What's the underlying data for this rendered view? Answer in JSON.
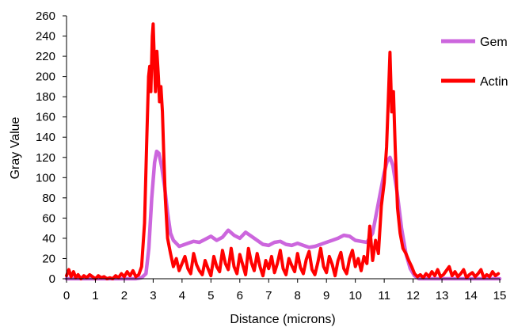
{
  "chart_data": {
    "type": "line",
    "title": "",
    "xlabel": "Distance (microns)",
    "ylabel": "Gray Value",
    "xlim": [
      0,
      15
    ],
    "ylim": [
      0,
      260
    ],
    "xticks": [
      0,
      1,
      2,
      3,
      4,
      5,
      6,
      7,
      8,
      9,
      10,
      11,
      12,
      13,
      14,
      15
    ],
    "yticks": [
      0,
      20,
      40,
      60,
      80,
      100,
      120,
      140,
      160,
      180,
      200,
      220,
      240,
      260
    ],
    "grid": false,
    "legend_position": "right",
    "series": [
      {
        "name": "Gem",
        "color": "#cc66dd",
        "points": [
          [
            0.0,
            0
          ],
          [
            0.5,
            0
          ],
          [
            1.0,
            0
          ],
          [
            1.5,
            0
          ],
          [
            2.0,
            0
          ],
          [
            2.4,
            0
          ],
          [
            2.6,
            1
          ],
          [
            2.75,
            5
          ],
          [
            2.85,
            30
          ],
          [
            2.95,
            80
          ],
          [
            3.05,
            115
          ],
          [
            3.12,
            126
          ],
          [
            3.2,
            124
          ],
          [
            3.3,
            110
          ],
          [
            3.4,
            90
          ],
          [
            3.5,
            65
          ],
          [
            3.6,
            45
          ],
          [
            3.7,
            38
          ],
          [
            3.8,
            35
          ],
          [
            3.9,
            32
          ],
          [
            4.0,
            33
          ],
          [
            4.2,
            35
          ],
          [
            4.4,
            37
          ],
          [
            4.6,
            36
          ],
          [
            4.8,
            39
          ],
          [
            5.0,
            42
          ],
          [
            5.2,
            38
          ],
          [
            5.4,
            41
          ],
          [
            5.6,
            48
          ],
          [
            5.8,
            43
          ],
          [
            6.0,
            40
          ],
          [
            6.2,
            46
          ],
          [
            6.4,
            42
          ],
          [
            6.6,
            38
          ],
          [
            6.8,
            34
          ],
          [
            7.0,
            33
          ],
          [
            7.2,
            36
          ],
          [
            7.4,
            37
          ],
          [
            7.6,
            34
          ],
          [
            7.8,
            33
          ],
          [
            8.0,
            35
          ],
          [
            8.2,
            33
          ],
          [
            8.4,
            31
          ],
          [
            8.6,
            32
          ],
          [
            8.8,
            34
          ],
          [
            9.0,
            36
          ],
          [
            9.2,
            38
          ],
          [
            9.4,
            40
          ],
          [
            9.6,
            43
          ],
          [
            9.8,
            42
          ],
          [
            10.0,
            38
          ],
          [
            10.2,
            37
          ],
          [
            10.4,
            36
          ],
          [
            10.6,
            45
          ],
          [
            10.8,
            75
          ],
          [
            11.0,
            105
          ],
          [
            11.1,
            116
          ],
          [
            11.2,
            120
          ],
          [
            11.3,
            112
          ],
          [
            11.45,
            85
          ],
          [
            11.6,
            50
          ],
          [
            11.75,
            25
          ],
          [
            11.9,
            10
          ],
          [
            12.05,
            3
          ],
          [
            12.2,
            0
          ],
          [
            12.5,
            0
          ],
          [
            13.0,
            0
          ],
          [
            14.0,
            0
          ],
          [
            15.0,
            0
          ]
        ]
      },
      {
        "name": "Actin",
        "color": "#ff0000",
        "points": [
          [
            0.0,
            3
          ],
          [
            0.08,
            9
          ],
          [
            0.16,
            2
          ],
          [
            0.24,
            7
          ],
          [
            0.32,
            1
          ],
          [
            0.4,
            4
          ],
          [
            0.5,
            0
          ],
          [
            0.6,
            3
          ],
          [
            0.7,
            1
          ],
          [
            0.8,
            4
          ],
          [
            0.9,
            2
          ],
          [
            1.0,
            0
          ],
          [
            1.1,
            3
          ],
          [
            1.2,
            1
          ],
          [
            1.3,
            2
          ],
          [
            1.4,
            0
          ],
          [
            1.5,
            1
          ],
          [
            1.6,
            0
          ],
          [
            1.7,
            3
          ],
          [
            1.8,
            1
          ],
          [
            1.9,
            5
          ],
          [
            2.0,
            2
          ],
          [
            2.1,
            7
          ],
          [
            2.2,
            3
          ],
          [
            2.3,
            8
          ],
          [
            2.4,
            2
          ],
          [
            2.5,
            4
          ],
          [
            2.6,
            12
          ],
          [
            2.7,
            55
          ],
          [
            2.78,
            140
          ],
          [
            2.84,
            200
          ],
          [
            2.88,
            210
          ],
          [
            2.92,
            185
          ],
          [
            2.97,
            240
          ],
          [
            3.0,
            252
          ],
          [
            3.04,
            215
          ],
          [
            3.08,
            185
          ],
          [
            3.13,
            225
          ],
          [
            3.18,
            200
          ],
          [
            3.22,
            175
          ],
          [
            3.27,
            190
          ],
          [
            3.32,
            165
          ],
          [
            3.37,
            120
          ],
          [
            3.42,
            80
          ],
          [
            3.5,
            40
          ],
          [
            3.6,
            25
          ],
          [
            3.7,
            12
          ],
          [
            3.8,
            20
          ],
          [
            3.9,
            8
          ],
          [
            4.0,
            15
          ],
          [
            4.1,
            22
          ],
          [
            4.2,
            10
          ],
          [
            4.3,
            5
          ],
          [
            4.4,
            25
          ],
          [
            4.5,
            14
          ],
          [
            4.6,
            8
          ],
          [
            4.7,
            4
          ],
          [
            4.8,
            18
          ],
          [
            4.9,
            10
          ],
          [
            5.0,
            3
          ],
          [
            5.1,
            22
          ],
          [
            5.2,
            12
          ],
          [
            5.3,
            7
          ],
          [
            5.4,
            28
          ],
          [
            5.5,
            15
          ],
          [
            5.6,
            9
          ],
          [
            5.7,
            30
          ],
          [
            5.8,
            12
          ],
          [
            5.9,
            5
          ],
          [
            6.0,
            24
          ],
          [
            6.1,
            14
          ],
          [
            6.2,
            4
          ],
          [
            6.3,
            30
          ],
          [
            6.4,
            16
          ],
          [
            6.5,
            8
          ],
          [
            6.6,
            25
          ],
          [
            6.7,
            12
          ],
          [
            6.8,
            3
          ],
          [
            6.9,
            18
          ],
          [
            7.0,
            10
          ],
          [
            7.1,
            22
          ],
          [
            7.2,
            6
          ],
          [
            7.3,
            15
          ],
          [
            7.4,
            28
          ],
          [
            7.5,
            10
          ],
          [
            7.6,
            4
          ],
          [
            7.7,
            20
          ],
          [
            7.8,
            13
          ],
          [
            7.9,
            7
          ],
          [
            8.0,
            25
          ],
          [
            8.1,
            11
          ],
          [
            8.2,
            5
          ],
          [
            8.3,
            19
          ],
          [
            8.4,
            27
          ],
          [
            8.5,
            9
          ],
          [
            8.6,
            4
          ],
          [
            8.7,
            16
          ],
          [
            8.8,
            30
          ],
          [
            8.9,
            12
          ],
          [
            9.0,
            6
          ],
          [
            9.1,
            22
          ],
          [
            9.2,
            14
          ],
          [
            9.3,
            3
          ],
          [
            9.4,
            18
          ],
          [
            9.5,
            26
          ],
          [
            9.6,
            10
          ],
          [
            9.7,
            5
          ],
          [
            9.8,
            20
          ],
          [
            9.9,
            28
          ],
          [
            10.0,
            12
          ],
          [
            10.1,
            20
          ],
          [
            10.2,
            8
          ],
          [
            10.3,
            22
          ],
          [
            10.4,
            15
          ],
          [
            10.5,
            52
          ],
          [
            10.6,
            18
          ],
          [
            10.7,
            38
          ],
          [
            10.8,
            25
          ],
          [
            10.9,
            72
          ],
          [
            11.0,
            95
          ],
          [
            11.08,
            130
          ],
          [
            11.14,
            175
          ],
          [
            11.2,
            224
          ],
          [
            11.26,
            165
          ],
          [
            11.32,
            185
          ],
          [
            11.38,
            130
          ],
          [
            11.46,
            70
          ],
          [
            11.55,
            45
          ],
          [
            11.65,
            30
          ],
          [
            11.75,
            25
          ],
          [
            11.85,
            18
          ],
          [
            11.95,
            12
          ],
          [
            12.05,
            5
          ],
          [
            12.15,
            2
          ],
          [
            12.25,
            4
          ],
          [
            12.35,
            1
          ],
          [
            12.45,
            5
          ],
          [
            12.55,
            2
          ],
          [
            12.65,
            7
          ],
          [
            12.75,
            3
          ],
          [
            12.85,
            9
          ],
          [
            12.95,
            2
          ],
          [
            13.05,
            4
          ],
          [
            13.15,
            8
          ],
          [
            13.25,
            12
          ],
          [
            13.35,
            3
          ],
          [
            13.45,
            7
          ],
          [
            13.55,
            2
          ],
          [
            13.65,
            5
          ],
          [
            13.75,
            9
          ],
          [
            13.85,
            1
          ],
          [
            13.95,
            4
          ],
          [
            14.05,
            6
          ],
          [
            14.15,
            2
          ],
          [
            14.25,
            5
          ],
          [
            14.35,
            9
          ],
          [
            14.45,
            1
          ],
          [
            14.55,
            4
          ],
          [
            14.65,
            2
          ],
          [
            14.75,
            7
          ],
          [
            14.85,
            3
          ],
          [
            14.95,
            5
          ]
        ]
      }
    ]
  }
}
